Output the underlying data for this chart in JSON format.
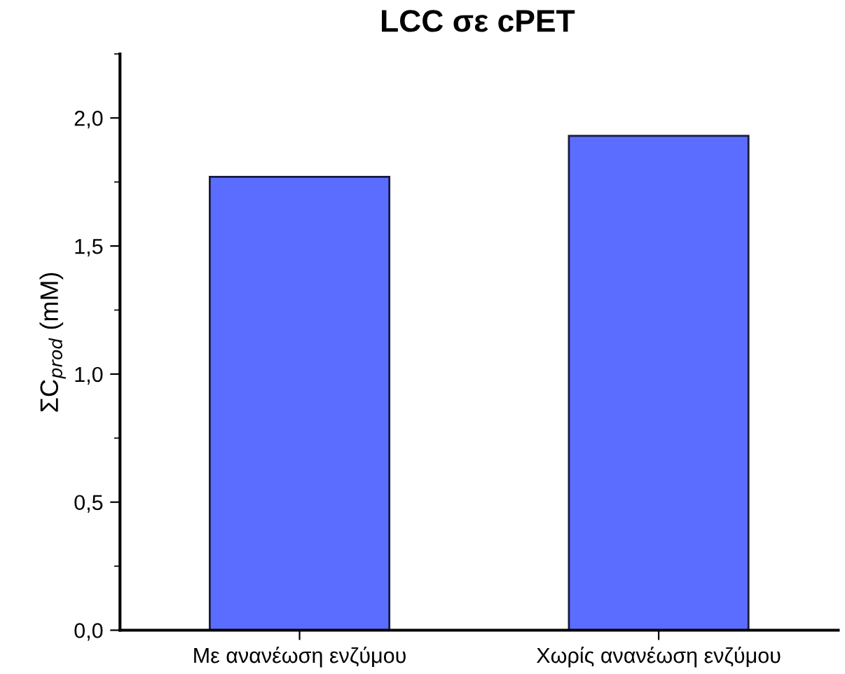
{
  "chart_data": {
    "type": "bar",
    "title": "LCC σε cPET",
    "ylabel": "ΣC$_{prod}$ (mM)",
    "categories": [
      "Με ανανέωση ενζύμου",
      "Χωρίς ανανέωση ενζύμου"
    ],
    "values": [
      1.77,
      1.93
    ],
    "color": "#5b6dff",
    "ylim": [
      0,
      2.25
    ],
    "yticks": [
      {
        "value": 0,
        "label": "0,0"
      },
      {
        "value": 0.5,
        "label": "0,5"
      },
      {
        "value": 1.0,
        "label": "1,0"
      },
      {
        "value": 1.5,
        "label": "1,5"
      },
      {
        "value": 2.0,
        "label": "2,0"
      }
    ],
    "grid": false
  }
}
